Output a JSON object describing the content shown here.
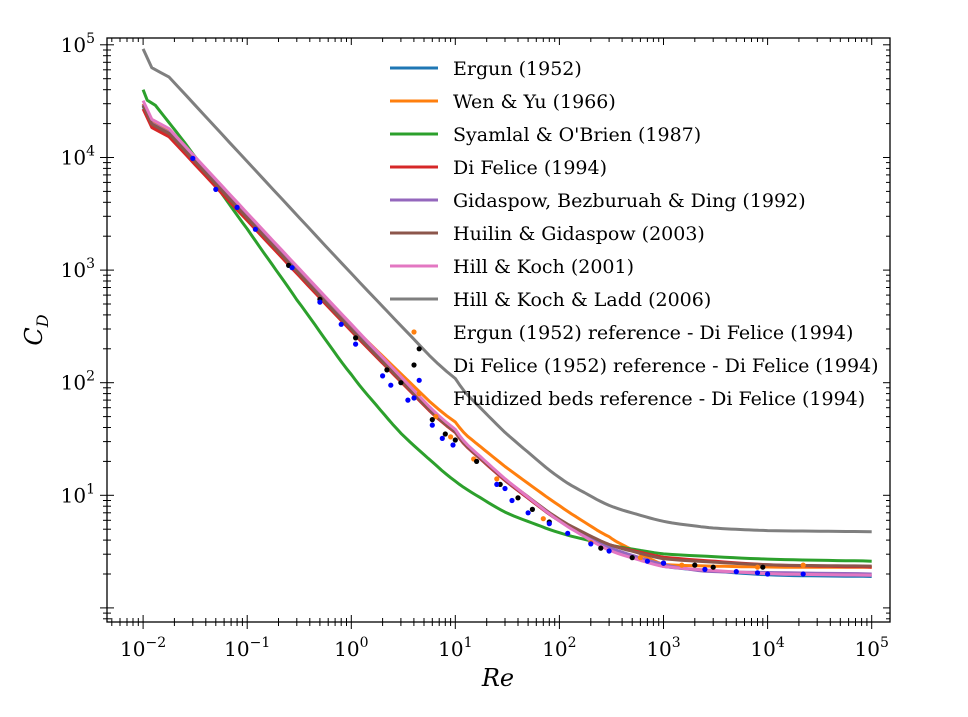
{
  "chart_data": {
    "type": "line",
    "title": "",
    "xlabel": "Re",
    "ylabel": "C_D",
    "ylabel_main": "C",
    "ylabel_sub": "D",
    "xscale": "log",
    "yscale": "log",
    "xlim": [
      0.0045,
      150000
    ],
    "ylim": [
      0.75,
      115000
    ],
    "grid": false,
    "legend_position": "top-center",
    "x_ticks": [
      {
        "base": "10",
        "exp": "−2",
        "value": 0.01
      },
      {
        "base": "10",
        "exp": "−1",
        "value": 0.1
      },
      {
        "base": "10",
        "exp": "0",
        "value": 1
      },
      {
        "base": "10",
        "exp": "1",
        "value": 10
      },
      {
        "base": "10",
        "exp": "2",
        "value": 100
      },
      {
        "base": "10",
        "exp": "3",
        "value": 1000
      },
      {
        "base": "10",
        "exp": "4",
        "value": 10000
      },
      {
        "base": "10",
        "exp": "5",
        "value": 100000
      }
    ],
    "y_ticks": [
      {
        "base": "10",
        "exp": "1",
        "value": 10
      },
      {
        "base": "10",
        "exp": "2",
        "value": 100
      },
      {
        "base": "10",
        "exp": "3",
        "value": 1000
      },
      {
        "base": "10",
        "exp": "4",
        "value": 10000
      },
      {
        "base": "10",
        "exp": "5",
        "value": 100000
      }
    ],
    "series": [
      {
        "name": "Ergun (1952)",
        "kind": "line",
        "color": "#1f77b4",
        "x": [
          0.01,
          0.1,
          1,
          10,
          30,
          100,
          300,
          1000,
          10000,
          100000
        ],
        "y": [
          28500,
          2870,
          292,
          33.3,
          13.5,
          5.8,
          3.4,
          2.3,
          1.95,
          1.9
        ]
      },
      {
        "name": "Wen & Yu (1966)",
        "kind": "line",
        "color": "#ff7f0e",
        "x": [
          0.01,
          0.1,
          1,
          10,
          30,
          100,
          300,
          600,
          1000,
          10000,
          100000
        ],
        "y": [
          30000,
          3000,
          320,
          41,
          18,
          8,
          4.2,
          3.0,
          2.4,
          2.3,
          2.3
        ]
      },
      {
        "name": "Syamlal & O'Brien (1987)",
        "kind": "line",
        "color": "#2ca02c",
        "x": [
          0.01,
          0.03,
          0.1,
          0.3,
          1,
          3,
          10,
          30,
          100,
          300,
          1000,
          10000,
          100000
        ],
        "y": [
          40000,
          11000,
          2300,
          550,
          115,
          35,
          13,
          7.0,
          4.6,
          3.6,
          3.0,
          2.7,
          2.6
        ]
      },
      {
        "name": "Di Felice (1994)",
        "kind": "line",
        "color": "#d62728",
        "x": [
          0.01,
          0.1,
          1,
          10,
          30,
          100,
          300,
          1000,
          10000,
          100000
        ],
        "y": [
          27000,
          2750,
          285,
          33,
          13.5,
          5.8,
          3.6,
          2.8,
          2.4,
          2.3
        ]
      },
      {
        "name": "Gidaspow, Bezburuah & Ding (1992)",
        "kind": "line",
        "color": "#9467bd",
        "x": [
          0.01,
          0.1,
          1,
          10,
          30,
          100,
          300,
          1000,
          2500,
          100000
        ],
        "y": [
          29500,
          2950,
          300,
          33.5,
          13.8,
          5.9,
          3.4,
          2.4,
          2.1,
          2.0
        ]
      },
      {
        "name": "Huilin & Gidaspow (2003)",
        "kind": "line",
        "color": "#8c564b",
        "x": [
          0.01,
          0.1,
          1,
          10,
          30,
          100,
          300,
          1000,
          10000,
          100000
        ],
        "y": [
          29000,
          2900,
          295,
          33.5,
          13.8,
          6.0,
          3.6,
          2.7,
          2.4,
          2.35
        ]
      },
      {
        "name": "Hill & Koch (2001)",
        "kind": "line",
        "color": "#e377c2",
        "x": [
          0.01,
          0.1,
          1,
          10,
          30,
          100,
          300,
          1000,
          10000,
          100000
        ],
        "y": [
          32000,
          3200,
          330,
          35,
          14,
          5.8,
          3.2,
          2.3,
          2.0,
          1.95
        ]
      },
      {
        "name": "Hill & Koch & Ladd (2006)",
        "kind": "line",
        "color": "#7f7f7f",
        "x": [
          0.01,
          0.1,
          1,
          10,
          30,
          100,
          300,
          1000,
          3000,
          10000,
          100000
        ],
        "y": [
          92000,
          9200,
          930,
          100,
          36,
          14,
          8.0,
          5.8,
          5.1,
          4.85,
          4.75
        ]
      },
      {
        "name": "Ergun (1952) reference - Di Felice (1994)",
        "kind": "points",
        "color": "#ff7f0e",
        "x": [
          4.5,
          6.5,
          9,
          15,
          25,
          40,
          70,
          200,
          600,
          1500,
          3000,
          8000,
          22000
        ],
        "y": [
          80,
          50,
          33,
          21,
          14,
          9.5,
          6.2,
          3.8,
          2.8,
          2.4,
          2.3,
          2.3,
          2.4
        ]
      },
      {
        "name": "Di Felice (1952) reference - Di Felice (1994)",
        "kind": "points",
        "color": "#000000",
        "x": [
          0.25,
          0.5,
          1.1,
          2.2,
          3.0,
          4.5,
          6.0,
          8.0,
          10,
          16,
          27,
          40,
          55,
          80,
          250,
          500,
          1000,
          2000,
          3000,
          9000
        ],
        "y": [
          1100,
          550,
          250,
          130,
          100,
          200,
          47,
          35,
          31,
          20,
          12.5,
          9.5,
          7.5,
          5.8,
          3.4,
          2.8,
          2.5,
          2.4,
          2.3,
          2.3
        ]
      },
      {
        "name": "Fluidized beds reference - Di Felice (1994)",
        "kind": "points",
        "color": "#0000ff",
        "x": [
          0.03,
          0.05,
          0.08,
          0.12,
          0.27,
          0.5,
          0.8,
          1.1,
          2.0,
          2.4,
          3.5,
          4.5,
          6.0,
          7.5,
          9.5,
          25,
          30,
          35,
          50,
          80,
          120,
          200,
          300,
          700,
          1000,
          2500,
          5000,
          8000,
          10000,
          22000
        ],
        "y": [
          9800,
          5200,
          3600,
          2300,
          1050,
          520,
          330,
          220,
          115,
          95,
          70,
          105,
          42,
          32,
          28,
          12.5,
          11.5,
          9,
          7,
          5.6,
          4.6,
          3.7,
          3.2,
          2.6,
          2.5,
          2.2,
          2.1,
          2.05,
          2.0,
          2.0
        ]
      }
    ]
  }
}
